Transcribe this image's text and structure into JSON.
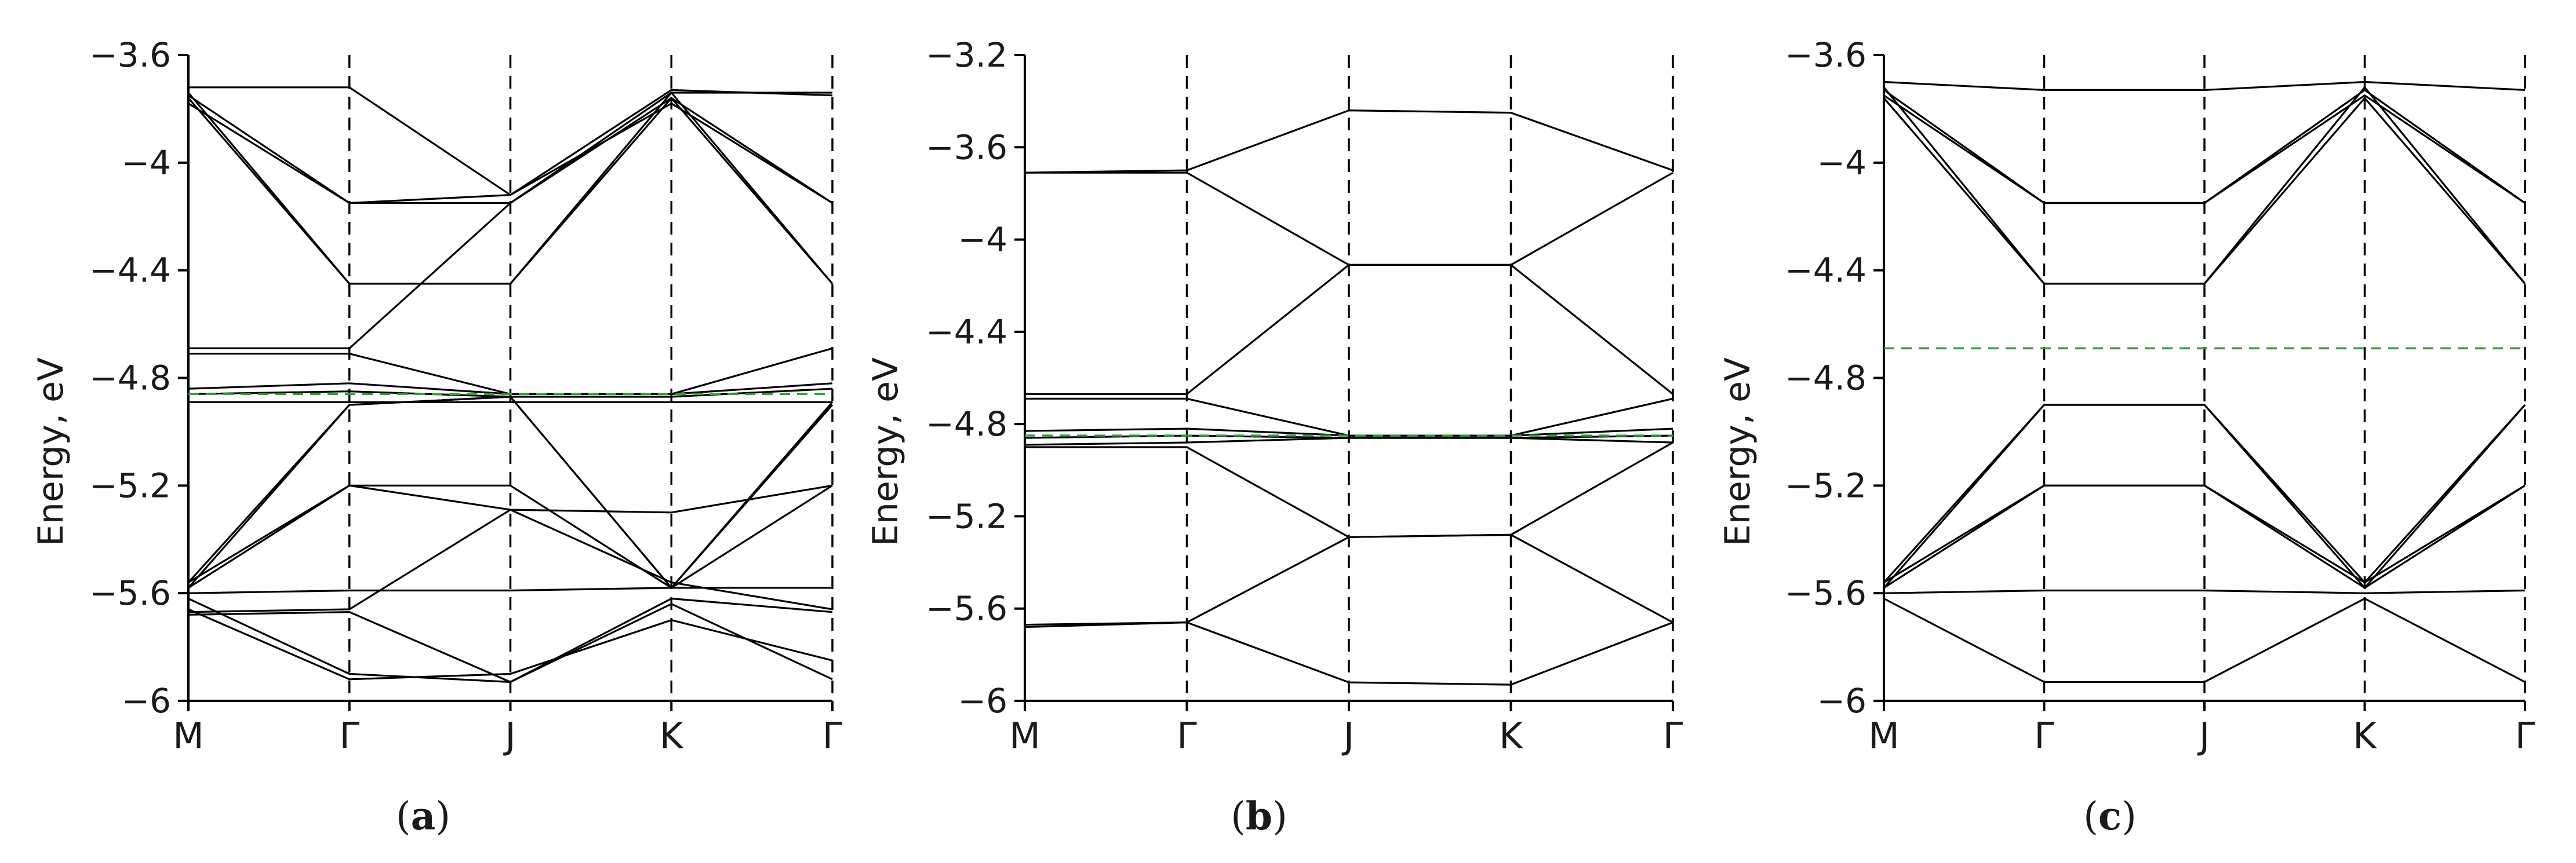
{
  "figure": {
    "captions": [
      {
        "open": "(",
        "letter": "a",
        "close": ")"
      },
      {
        "open": "(",
        "letter": "b",
        "close": ")"
      },
      {
        "open": "(",
        "letter": "c",
        "close": ")"
      }
    ]
  },
  "colors": {
    "bands": "#000000",
    "fermi": "#3a9a3a",
    "axes": "#000000"
  },
  "chart_data": [
    {
      "type": "line",
      "panel": "a",
      "ylabel": "Energy, eV",
      "ylim": [
        -6,
        -3.6
      ],
      "yticks": [
        -6,
        -5.6,
        -5.2,
        -4.8,
        -4.4,
        -4,
        -3.6
      ],
      "ytick_labels": [
        "−6",
        "−5.6",
        "−5.2",
        "−4.8",
        "−4.4",
        "−4",
        "−3.6"
      ],
      "kpath": [
        "M",
        "Γ",
        "J",
        "K",
        "Γ"
      ],
      "fermi_level": -4.86,
      "series": [
        {
          "x": [
            0,
            1,
            2,
            3,
            4
          ],
          "y": [
            -3.72,
            -3.72,
            -4.12,
            -3.73,
            -3.75
          ]
        },
        {
          "x": [
            0,
            1,
            2,
            3,
            4
          ],
          "y": [
            -3.75,
            -4.15,
            -4.15,
            -3.76,
            -4.15
          ]
        },
        {
          "x": [
            0,
            1,
            2,
            3,
            4
          ],
          "y": [
            -3.78,
            -4.15,
            -4.12,
            -3.78,
            -4.15
          ]
        },
        {
          "x": [
            0,
            1,
            2,
            3,
            4
          ],
          "y": [
            -3.74,
            -4.45,
            -4.45,
            -3.74,
            -4.45
          ]
        },
        {
          "x": [
            0,
            1,
            2,
            3,
            4
          ],
          "y": [
            -3.76,
            -4.45,
            -4.45,
            -3.76,
            -4.45
          ]
        },
        {
          "x": [
            0,
            1,
            2,
            3,
            4
          ],
          "y": [
            -4.69,
            -4.69,
            -4.15,
            -3.74,
            -3.74
          ]
        },
        {
          "x": [
            0,
            1,
            2,
            3,
            4
          ],
          "y": [
            -4.71,
            -4.71,
            -4.86,
            -4.86,
            -4.69
          ]
        },
        {
          "x": [
            0,
            1,
            2,
            3,
            4
          ],
          "y": [
            -4.84,
            -4.82,
            -4.86,
            -4.86,
            -4.82
          ]
        },
        {
          "x": [
            0,
            1,
            2,
            3,
            4
          ],
          "y": [
            -4.86,
            -4.85,
            -4.87,
            -4.87,
            -4.84
          ]
        },
        {
          "x": [
            0,
            1,
            2,
            3,
            4
          ],
          "y": [
            -4.89,
            -4.89,
            -4.89,
            -4.89,
            -4.89
          ]
        },
        {
          "x": [
            0,
            1,
            2,
            3,
            4
          ],
          "y": [
            -5.56,
            -4.9,
            -4.87,
            -5.58,
            -4.89
          ]
        },
        {
          "x": [
            0,
            1,
            2,
            3,
            4
          ],
          "y": [
            -5.58,
            -4.9,
            -4.87,
            -5.58,
            -4.9
          ]
        },
        {
          "x": [
            0,
            1,
            2,
            3,
            4
          ],
          "y": [
            -5.56,
            -5.2,
            -5.2,
            -5.58,
            -5.2
          ]
        },
        {
          "x": [
            0,
            1,
            2,
            3,
            4
          ],
          "y": [
            -5.58,
            -5.2,
            -5.29,
            -5.3,
            -5.2
          ]
        },
        {
          "x": [
            0,
            1,
            2,
            3,
            4
          ],
          "y": [
            -5.6,
            -5.59,
            -5.59,
            -5.58,
            -5.58
          ]
        },
        {
          "x": [
            0,
            1,
            2,
            3,
            4
          ],
          "y": [
            -5.67,
            -5.66,
            -5.29,
            -5.56,
            -5.66
          ]
        },
        {
          "x": [
            0,
            1,
            2,
            3,
            4
          ],
          "y": [
            -5.68,
            -5.67,
            -5.93,
            -5.62,
            -5.67
          ]
        },
        {
          "x": [
            0,
            1,
            2,
            3,
            4
          ],
          "y": [
            -5.62,
            -5.9,
            -5.93,
            -5.64,
            -5.92
          ]
        },
        {
          "x": [
            0,
            1,
            2,
            3,
            4
          ],
          "y": [
            -5.66,
            -5.92,
            -5.9,
            -5.7,
            -5.85
          ]
        }
      ]
    },
    {
      "type": "line",
      "panel": "b",
      "ylabel": "Energy, eV",
      "ylim": [
        -6,
        -3.2
      ],
      "yticks": [
        -6,
        -5.6,
        -5.2,
        -4.8,
        -4.4,
        -4,
        -3.6,
        -3.2
      ],
      "ytick_labels": [
        "−6",
        "−5.6",
        "−5.2",
        "−4.8",
        "−4.4",
        "−4",
        "−3.6",
        "−3.2"
      ],
      "kpath": [
        "M",
        "Γ",
        "J",
        "K",
        "Γ"
      ],
      "fermi_level": -4.85,
      "series": [
        {
          "x": [
            0,
            1,
            2,
            3,
            4
          ],
          "y": [
            -3.71,
            -3.7,
            -3.44,
            -3.45,
            -3.7
          ]
        },
        {
          "x": [
            0,
            1,
            2,
            3,
            4
          ],
          "y": [
            -3.71,
            -3.71,
            -4.11,
            -4.11,
            -3.71
          ]
        },
        {
          "x": [
            0,
            1,
            2,
            3,
            4
          ],
          "y": [
            -4.67,
            -4.67,
            -4.11,
            -4.11,
            -4.67
          ]
        },
        {
          "x": [
            0,
            1,
            2,
            3,
            4
          ],
          "y": [
            -4.69,
            -4.69,
            -4.85,
            -4.85,
            -4.69
          ]
        },
        {
          "x": [
            0,
            1,
            2,
            3,
            4
          ],
          "y": [
            -4.83,
            -4.82,
            -4.85,
            -4.85,
            -4.82
          ]
        },
        {
          "x": [
            0,
            1,
            2,
            3,
            4
          ],
          "y": [
            -4.86,
            -4.85,
            -4.86,
            -4.86,
            -4.85
          ]
        },
        {
          "x": [
            0,
            1,
            2,
            3,
            4
          ],
          "y": [
            -4.89,
            -4.88,
            -4.86,
            -4.86,
            -4.88
          ]
        },
        {
          "x": [
            0,
            1,
            2,
            3,
            4
          ],
          "y": [
            -4.9,
            -4.9,
            -5.29,
            -5.28,
            -4.88
          ]
        },
        {
          "x": [
            0,
            1,
            2,
            3,
            4
          ],
          "y": [
            -5.67,
            -5.66,
            -5.29,
            -5.28,
            -5.66
          ]
        },
        {
          "x": [
            0,
            1,
            2,
            3,
            4
          ],
          "y": [
            -5.68,
            -5.66,
            -5.92,
            -5.93,
            -5.66
          ]
        }
      ]
    },
    {
      "type": "line",
      "panel": "c",
      "ylabel": "Energy, eV",
      "ylim": [
        -6,
        -3.6
      ],
      "yticks": [
        -6,
        -5.6,
        -5.2,
        -4.8,
        -4.4,
        -4,
        -3.6
      ],
      "ytick_labels": [
        "−6",
        "−5.6",
        "−5.2",
        "−4.8",
        "−4.4",
        "−4",
        "−3.6"
      ],
      "kpath": [
        "M",
        "Γ",
        "J",
        "K",
        "Γ"
      ],
      "fermi_level": -4.69,
      "series": [
        {
          "x": [
            0,
            1,
            2,
            3,
            4
          ],
          "y": [
            -3.7,
            -3.73,
            -3.73,
            -3.7,
            -3.73
          ]
        },
        {
          "x": [
            0,
            1,
            2,
            3,
            4
          ],
          "y": [
            -3.73,
            -4.15,
            -4.15,
            -3.73,
            -4.15
          ]
        },
        {
          "x": [
            0,
            1,
            2,
            3,
            4
          ],
          "y": [
            -3.75,
            -4.15,
            -4.15,
            -3.75,
            -4.15
          ]
        },
        {
          "x": [
            0,
            1,
            2,
            3,
            4
          ],
          "y": [
            -3.72,
            -4.45,
            -4.45,
            -3.72,
            -4.45
          ]
        },
        {
          "x": [
            0,
            1,
            2,
            3,
            4
          ],
          "y": [
            -3.76,
            -4.45,
            -4.45,
            -3.76,
            -4.45
          ]
        },
        {
          "x": [
            0,
            1,
            2,
            3,
            4
          ],
          "y": [
            -5.56,
            -4.9,
            -4.9,
            -5.56,
            -4.9
          ]
        },
        {
          "x": [
            0,
            1,
            2,
            3,
            4
          ],
          "y": [
            -5.58,
            -4.9,
            -4.9,
            -5.58,
            -4.9
          ]
        },
        {
          "x": [
            0,
            1,
            2,
            3,
            4
          ],
          "y": [
            -5.56,
            -5.2,
            -5.2,
            -5.56,
            -5.2
          ]
        },
        {
          "x": [
            0,
            1,
            2,
            3,
            4
          ],
          "y": [
            -5.58,
            -5.2,
            -5.2,
            -5.58,
            -5.2
          ]
        },
        {
          "x": [
            0,
            1,
            2,
            3,
            4
          ],
          "y": [
            -5.6,
            -5.59,
            -5.59,
            -5.6,
            -5.59
          ]
        },
        {
          "x": [
            0,
            1,
            2,
            3,
            4
          ],
          "y": [
            -5.62,
            -5.93,
            -5.93,
            -5.62,
            -5.93
          ]
        }
      ]
    }
  ]
}
